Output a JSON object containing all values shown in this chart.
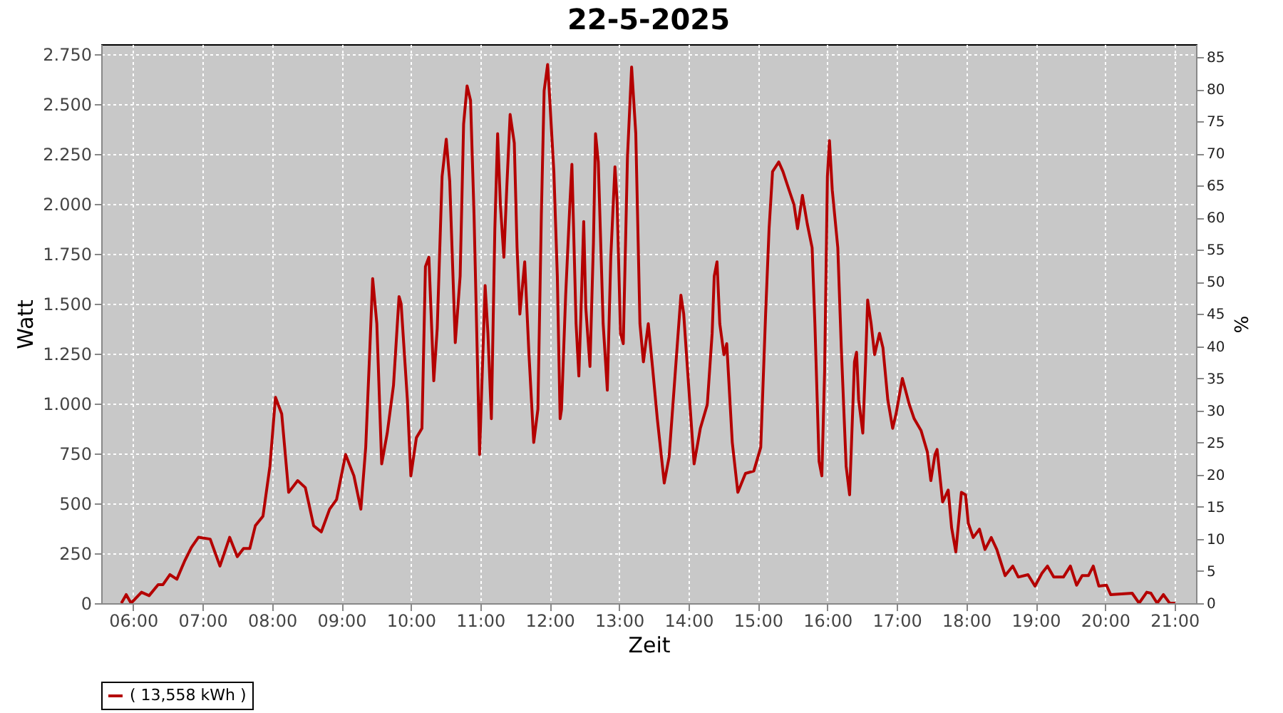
{
  "chart_data": {
    "type": "line",
    "title": "22-5-2025",
    "xlabel": "Zeit",
    "ylabel": "Watt",
    "y2label": "%",
    "x": [
      5.83,
      5.9,
      5.97,
      6.12,
      6.23,
      6.36,
      6.43,
      6.53,
      6.63,
      6.74,
      6.84,
      6.94,
      7.11,
      7.25,
      7.39,
      7.5,
      7.59,
      7.68,
      7.76,
      7.87,
      7.97,
      8.05,
      8.14,
      8.24,
      8.37,
      8.48,
      8.6,
      8.71,
      8.83,
      8.93,
      9.06,
      9.18,
      9.28,
      9.35,
      9.41,
      9.45,
      9.51,
      9.58,
      9.66,
      9.75,
      9.83,
      9.86,
      9.95,
      10.0,
      10.08,
      10.16,
      10.21,
      10.26,
      10.33,
      10.38,
      10.45,
      10.51,
      10.56,
      10.64,
      10.71,
      10.76,
      10.81,
      10.86,
      10.91,
      10.99,
      11.07,
      11.11,
      11.16,
      11.21,
      11.25,
      11.29,
      11.34,
      11.38,
      11.43,
      11.49,
      11.53,
      11.57,
      11.64,
      11.7,
      11.77,
      11.83,
      11.88,
      11.92,
      11.97,
      11.99,
      12.06,
      12.11,
      12.15,
      12.17,
      12.23,
      12.29,
      12.32,
      12.38,
      12.42,
      12.45,
      12.49,
      12.52,
      12.58,
      12.63,
      12.66,
      12.7,
      12.77,
      12.83,
      12.88,
      12.94,
      12.97,
      13.02,
      13.06,
      13.12,
      13.18,
      13.24,
      13.3,
      13.35,
      13.42,
      13.48,
      13.55,
      13.65,
      13.72,
      13.81,
      13.89,
      13.93,
      14.02,
      14.08,
      14.17,
      14.27,
      14.34,
      14.37,
      14.41,
      14.45,
      14.51,
      14.55,
      14.63,
      14.71,
      14.82,
      14.94,
      15.04,
      15.11,
      15.16,
      15.21,
      15.3,
      15.36,
      15.45,
      15.52,
      15.57,
      15.64,
      15.71,
      15.78,
      15.82,
      15.88,
      15.92,
      15.96,
      16.0,
      16.03,
      16.07,
      16.15,
      16.2,
      16.27,
      16.32,
      16.39,
      16.42,
      16.45,
      16.51,
      16.55,
      16.58,
      16.63,
      16.68,
      16.75,
      16.8,
      16.87,
      16.94,
      16.99,
      17.08,
      17.18,
      17.25,
      17.35,
      17.44,
      17.49,
      17.55,
      17.58,
      17.66,
      17.74,
      17.79,
      17.85,
      17.93,
      17.99,
      18.03,
      18.1,
      18.19,
      18.27,
      18.36,
      18.44,
      18.56,
      18.67,
      18.75,
      18.89,
      18.99,
      19.09,
      19.17,
      19.26,
      19.4,
      19.5,
      19.59,
      19.67,
      19.76,
      19.83,
      19.91,
      20.02,
      20.08,
      20.39,
      20.49,
      20.6,
      20.66,
      20.75,
      20.84,
      20.93,
      21.01
    ],
    "series": [
      {
        "name": "( 13,558 kWh )",
        "color": "#b40000",
        "values": [
          0,
          43,
          0,
          55,
          38,
          93,
          93,
          143,
          120,
          210,
          280,
          330,
          321,
          186,
          330,
          233,
          274,
          274,
          388,
          436,
          686,
          1031,
          948,
          555,
          614,
          579,
          388,
          357,
          471,
          519,
          745,
          638,
          471,
          781,
          1281,
          1626,
          1400,
          698,
          852,
          1091,
          1536,
          1500,
          1019,
          638,
          829,
          876,
          1686,
          1733,
          1114,
          1376,
          2138,
          2324,
          2114,
          1305,
          1638,
          2400,
          2591,
          2519,
          1948,
          745,
          1591,
          1352,
          924,
          1876,
          2352,
          1995,
          1733,
          2067,
          2448,
          2305,
          1781,
          1448,
          1710,
          1257,
          805,
          971,
          1948,
          2567,
          2698,
          2590,
          2162,
          1638,
          924,
          970,
          1543,
          1995,
          2198,
          1400,
          1138,
          1450,
          1912,
          1480,
          1186,
          1805,
          2352,
          2210,
          1400,
          1067,
          1733,
          2186,
          2020,
          1352,
          1300,
          2233,
          2686,
          2352,
          1400,
          1209,
          1400,
          1186,
          924,
          602,
          733,
          1162,
          1543,
          1450,
          995,
          698,
          876,
          995,
          1352,
          1638,
          1710,
          1400,
          1245,
          1300,
          805,
          555,
          650,
          662,
          781,
          1448,
          1876,
          2162,
          2210,
          2162,
          2067,
          1995,
          1876,
          2043,
          1900,
          1781,
          1400,
          710,
          638,
          1160,
          2138,
          2317,
          2070,
          1781,
          1281,
          686,
          543,
          1209,
          1257,
          1020,
          852,
          1209,
          1519,
          1400,
          1245,
          1352,
          1280,
          1019,
          876,
          950,
          1126,
          995,
          924,
          864,
          757,
          614,
          745,
          770,
          507,
          567,
          376,
          257,
          555,
          543,
          400,
          329,
          371,
          269,
          329,
          269,
          138,
          186,
          131,
          143,
          86,
          150,
          186,
          131,
          131,
          186,
          90,
          138,
          138,
          186,
          86,
          90,
          43,
          50,
          0,
          55,
          50,
          0,
          43,
          0,
          0
        ]
      }
    ],
    "xlim": [
      5.54,
      21.31
    ],
    "xticks": [
      {
        "value": 6,
        "label": "06:00"
      },
      {
        "value": 7,
        "label": "07:00"
      },
      {
        "value": 8,
        "label": "08:00"
      },
      {
        "value": 9,
        "label": "09:00"
      },
      {
        "value": 10,
        "label": "10:00"
      },
      {
        "value": 11,
        "label": "11:00"
      },
      {
        "value": 12,
        "label": "12:00"
      },
      {
        "value": 13,
        "label": "13:00"
      },
      {
        "value": 14,
        "label": "14:00"
      },
      {
        "value": 15,
        "label": "15:00"
      },
      {
        "value": 16,
        "label": "16:00"
      },
      {
        "value": 17,
        "label": "17:00"
      },
      {
        "value": 18,
        "label": "18:00"
      },
      {
        "value": 19,
        "label": "19:00"
      },
      {
        "value": 20,
        "label": "20:00"
      },
      {
        "value": 21,
        "label": "21:00"
      }
    ],
    "ylim": [
      0,
      2800
    ],
    "yticks": [
      0,
      250,
      500,
      750,
      {
        "value": 1000,
        "label": "1.000"
      },
      {
        "value": 1250,
        "label": "1.250"
      },
      {
        "value": 1500,
        "label": "1.500"
      },
      {
        "value": 1750,
        "label": "1.750"
      },
      {
        "value": 2000,
        "label": "2.000"
      },
      {
        "value": 2250,
        "label": "2.250"
      },
      {
        "value": 2500,
        "label": "2.500"
      },
      {
        "value": 2750,
        "label": "2.750"
      }
    ],
    "y2lim": [
      0,
      87
    ],
    "y2ticks": [
      0,
      5,
      10,
      15,
      20,
      25,
      30,
      35,
      40,
      45,
      50,
      55,
      60,
      65,
      70,
      75,
      80,
      85
    ],
    "grid": true,
    "legend": "bottom",
    "marker": "none",
    "line_style": "solid"
  }
}
